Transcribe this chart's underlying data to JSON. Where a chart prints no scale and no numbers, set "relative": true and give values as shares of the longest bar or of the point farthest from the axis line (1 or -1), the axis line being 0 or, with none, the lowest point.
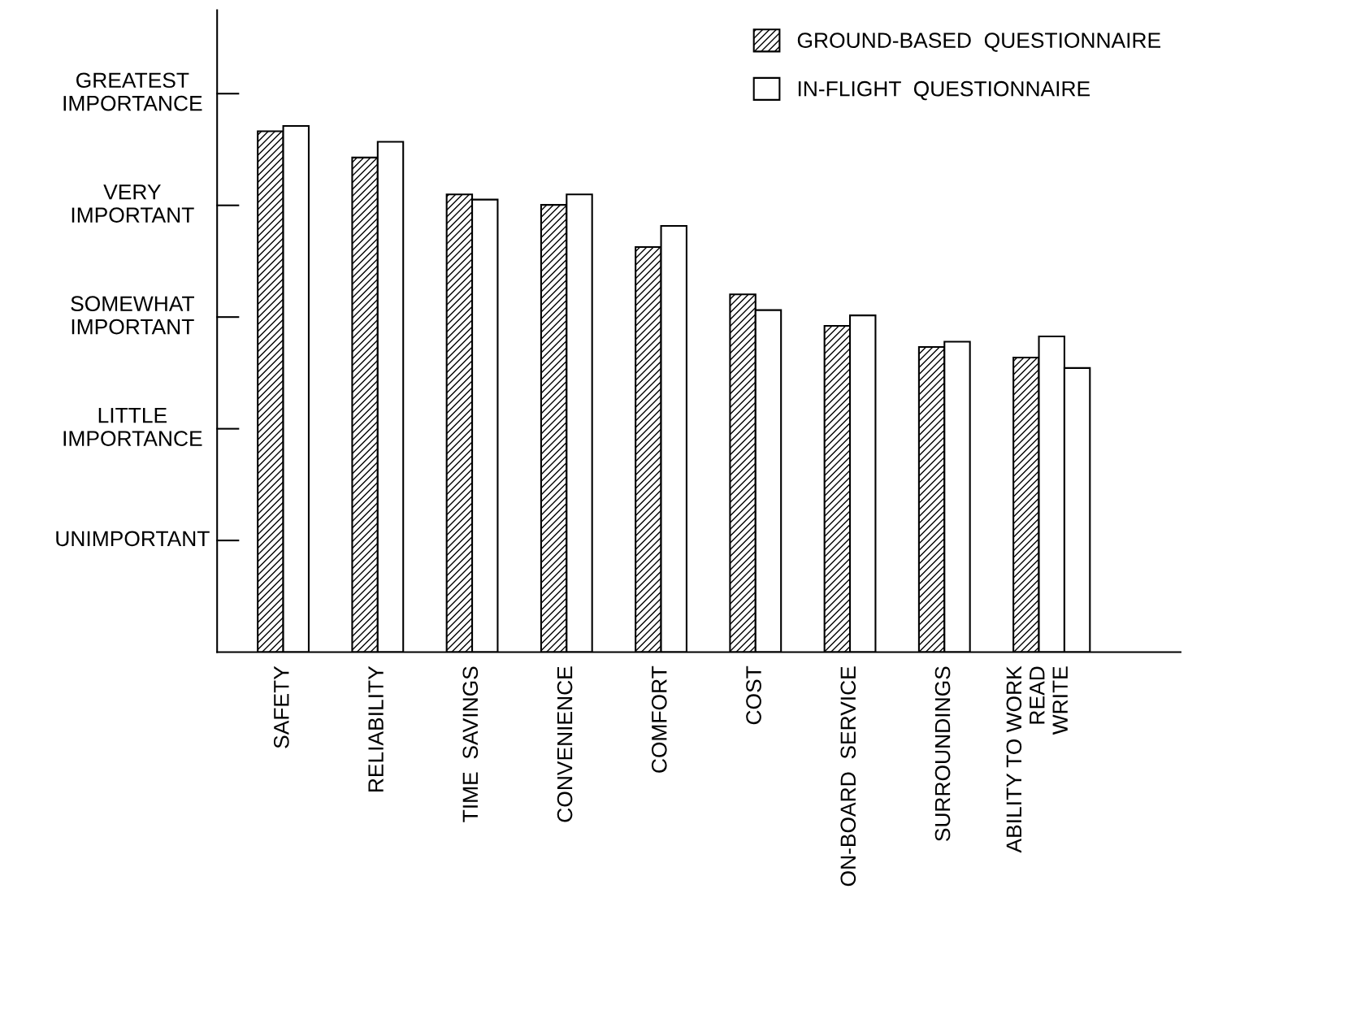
{
  "chart_data": {
    "type": "bar",
    "relative": true,
    "categories": [
      "SAFETY",
      "RELIABILITY",
      "TIME  SAVINGS",
      "CONVENIENCE",
      "COMFORT",
      "COST",
      "ON-BOARD  SERVICE",
      "SURROUNDINGS",
      "ABILITY TO WORK\nREAD\nWRITE"
    ],
    "series": [
      {
        "name": "GROUND-BASED  QUESTIONNAIRE",
        "color": "#000000",
        "values": [
          0.99,
          0.94,
          0.87,
          0.85,
          0.77,
          0.68,
          0.62,
          0.58,
          0.56
        ]
      },
      {
        "name": "IN-FLIGHT  QUESTIONNAIRE",
        "color": "#ffffff",
        "values": [
          1.0,
          0.97,
          0.86,
          0.87,
          0.81,
          0.65,
          0.64,
          0.59,
          0.6
        ]
      },
      {
        "color": "#ffffff",
        "values": [
          null,
          null,
          null,
          null,
          null,
          null,
          null,
          null,
          0.54
        ]
      }
    ],
    "annotations": [
      "UNIMPORTANT",
      "LITTLE\nIMPORTANCE",
      "SOMEWHAT\nIMPORTANT",
      "VERY\nIMPORTANT",
      "GREATEST\nIMPORTANCE"
    ],
    "legend": "top right",
    "grid": false
  }
}
